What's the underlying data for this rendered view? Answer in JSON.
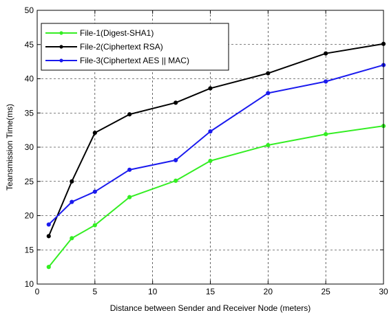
{
  "chart_data": {
    "type": "line",
    "title": "",
    "xlabel": "Distance between Sender and Receiver Node (meters)",
    "ylabel": "Teansmission Time(ms)",
    "xlim": [
      0,
      30
    ],
    "ylim": [
      10,
      50
    ],
    "xticks": [
      0,
      5,
      10,
      15,
      20,
      25,
      30
    ],
    "yticks": [
      10,
      15,
      20,
      25,
      30,
      35,
      40,
      45,
      50
    ],
    "grid": true,
    "grid_style": "dashed",
    "legend_position": "top-left",
    "x": [
      1,
      3,
      5,
      8,
      12,
      15,
      20,
      25,
      30
    ],
    "series": [
      {
        "name": "File-1(Digest-SHA1)",
        "color": "#33ee22",
        "values": [
          12.5,
          16.7,
          18.6,
          22.7,
          25.1,
          28.0,
          30.3,
          31.9,
          33.1
        ]
      },
      {
        "name": "File-2(Ciphertext RSA)",
        "color": "#000000",
        "values": [
          17.0,
          25.0,
          32.1,
          34.8,
          36.5,
          38.6,
          40.8,
          43.7,
          45.1
        ]
      },
      {
        "name": "File-3(Ciphertext AES || MAC)",
        "color": "#1a1aee",
        "values": [
          18.7,
          22.0,
          23.5,
          26.7,
          28.1,
          32.3,
          37.9,
          39.6,
          42.0
        ]
      }
    ]
  }
}
